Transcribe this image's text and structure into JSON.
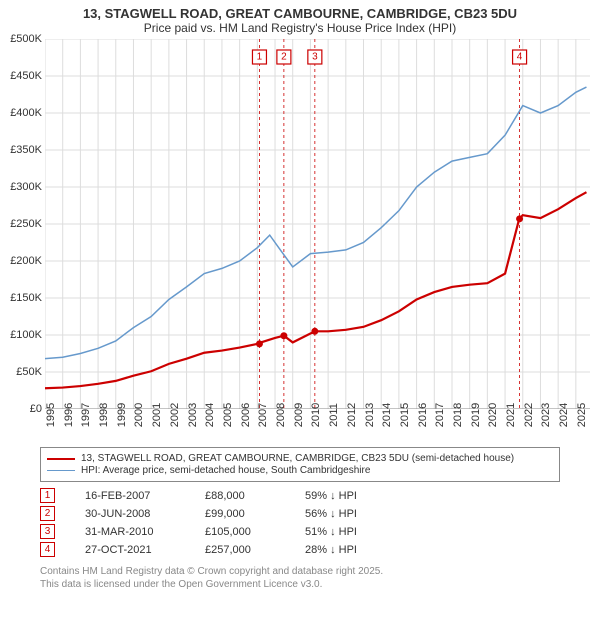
{
  "title": "13, STAGWELL ROAD, GREAT CAMBOURNE, CAMBRIDGE, CB23 5DU",
  "subtitle": "Price paid vs. HM Land Registry's House Price Index (HPI)",
  "chart": {
    "type": "line",
    "background_color": "#ffffff",
    "grid_color": "#dddddd",
    "x_axis": {
      "min": 1995,
      "max": 2025.8,
      "ticks": [
        1995,
        1996,
        1997,
        1998,
        1999,
        2000,
        2001,
        2002,
        2003,
        2004,
        2005,
        2006,
        2007,
        2008,
        2009,
        2010,
        2011,
        2012,
        2013,
        2014,
        2015,
        2016,
        2017,
        2018,
        2019,
        2020,
        2021,
        2022,
        2023,
        2024,
        2025
      ]
    },
    "y_axis": {
      "min": 0,
      "max": 500000,
      "ticks": [
        0,
        50000,
        100000,
        150000,
        200000,
        250000,
        300000,
        350000,
        400000,
        450000,
        500000
      ],
      "tick_labels": [
        "£0",
        "£50K",
        "£100K",
        "£150K",
        "£200K",
        "£250K",
        "£300K",
        "£350K",
        "£400K",
        "£450K",
        "£500K"
      ]
    },
    "series": [
      {
        "name": "hpi",
        "label": "HPI: Average price, semi-detached house, South Cambridgeshire",
        "color": "#6699cc",
        "line_width": 1.5,
        "data": [
          [
            1995,
            68000
          ],
          [
            1996,
            70000
          ],
          [
            1997,
            75000
          ],
          [
            1998,
            82000
          ],
          [
            1999,
            92000
          ],
          [
            2000,
            110000
          ],
          [
            2001,
            125000
          ],
          [
            2002,
            148000
          ],
          [
            2003,
            165000
          ],
          [
            2004,
            183000
          ],
          [
            2005,
            190000
          ],
          [
            2006,
            200000
          ],
          [
            2007,
            218000
          ],
          [
            2007.7,
            235000
          ],
          [
            2008.3,
            215000
          ],
          [
            2009,
            192000
          ],
          [
            2010,
            210000
          ],
          [
            2011,
            212000
          ],
          [
            2012,
            215000
          ],
          [
            2013,
            225000
          ],
          [
            2014,
            245000
          ],
          [
            2015,
            268000
          ],
          [
            2016,
            300000
          ],
          [
            2017,
            320000
          ],
          [
            2018,
            335000
          ],
          [
            2019,
            340000
          ],
          [
            2020,
            345000
          ],
          [
            2021,
            370000
          ],
          [
            2022,
            410000
          ],
          [
            2023,
            400000
          ],
          [
            2024,
            410000
          ],
          [
            2025,
            428000
          ],
          [
            2025.6,
            435000
          ]
        ]
      },
      {
        "name": "price-paid",
        "label": "13, STAGWELL ROAD, GREAT CAMBOURNE, CAMBRIDGE, CB23 5DU (semi-detached house)",
        "color": "#cc0000",
        "line_width": 2.2,
        "data": [
          [
            1995,
            28000
          ],
          [
            1996,
            29000
          ],
          [
            1997,
            31000
          ],
          [
            1998,
            34000
          ],
          [
            1999,
            38000
          ],
          [
            2000,
            45000
          ],
          [
            2001,
            51000
          ],
          [
            2002,
            61000
          ],
          [
            2003,
            68000
          ],
          [
            2004,
            76000
          ],
          [
            2005,
            79000
          ],
          [
            2006,
            83000
          ],
          [
            2007,
            88000
          ],
          [
            2007.2,
            90000
          ],
          [
            2008,
            96000
          ],
          [
            2008.5,
            99000
          ],
          [
            2009,
            90000
          ],
          [
            2010,
            102000
          ],
          [
            2010.3,
            105000
          ],
          [
            2011,
            105000
          ],
          [
            2012,
            107000
          ],
          [
            2013,
            111000
          ],
          [
            2014,
            120000
          ],
          [
            2015,
            132000
          ],
          [
            2016,
            148000
          ],
          [
            2017,
            158000
          ],
          [
            2018,
            165000
          ],
          [
            2019,
            168000
          ],
          [
            2020,
            170000
          ],
          [
            2021,
            183000
          ],
          [
            2021.8,
            257000
          ],
          [
            2022,
            262000
          ],
          [
            2023,
            258000
          ],
          [
            2024,
            270000
          ],
          [
            2025,
            285000
          ],
          [
            2025.6,
            293000
          ]
        ],
        "sale_points": [
          {
            "x": 2007.12,
            "y": 88000
          },
          {
            "x": 2008.5,
            "y": 99000
          },
          {
            "x": 2010.25,
            "y": 105000
          },
          {
            "x": 2021.82,
            "y": 257000
          }
        ]
      }
    ],
    "markers": [
      {
        "n": "1",
        "x": 2007.12,
        "color": "#cc0000"
      },
      {
        "n": "2",
        "x": 2008.5,
        "color": "#cc0000"
      },
      {
        "n": "3",
        "x": 2010.25,
        "color": "#cc0000"
      },
      {
        "n": "4",
        "x": 2021.82,
        "color": "#cc0000"
      }
    ]
  },
  "annotations": [
    {
      "n": "1",
      "date": "16-FEB-2007",
      "price": "£88,000",
      "diff": "59% ↓ HPI",
      "color": "#cc0000"
    },
    {
      "n": "2",
      "date": "30-JUN-2008",
      "price": "£99,000",
      "diff": "56% ↓ HPI",
      "color": "#cc0000"
    },
    {
      "n": "3",
      "date": "31-MAR-2010",
      "price": "£105,000",
      "diff": "51% ↓ HPI",
      "color": "#cc0000"
    },
    {
      "n": "4",
      "date": "27-OCT-2021",
      "price": "£257,000",
      "diff": "28% ↓ HPI",
      "color": "#cc0000"
    }
  ],
  "footnote_l1": "Contains HM Land Registry data © Crown copyright and database right 2025.",
  "footnote_l2": "This data is licensed under the Open Government Licence v3.0."
}
